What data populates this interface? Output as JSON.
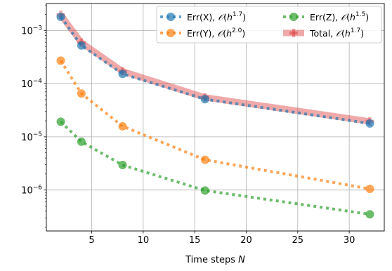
{
  "chart_data": {
    "type": "line",
    "xlabel": "Time steps N",
    "ylabel": "",
    "xscale": "linear",
    "yscale": "log",
    "xlim": [
      0.6,
      33.4
    ],
    "ylim": [
      1.7e-07,
      0.0032
    ],
    "xticks": [
      5,
      10,
      15,
      20,
      25,
      30
    ],
    "xtick_labels": [
      "5",
      "10",
      "15",
      "20",
      "25",
      "30"
    ],
    "yticks": [
      1e-06,
      1e-05,
      0.0001,
      0.001
    ],
    "ytick_labels": [
      {
        "base": "10",
        "exp": "−6"
      },
      {
        "base": "10",
        "exp": "−5"
      },
      {
        "base": "10",
        "exp": "−4"
      },
      {
        "base": "10",
        "exp": "−3"
      }
    ],
    "grid": true,
    "legend": {
      "placement": "top-right",
      "columns": 2
    },
    "x": [
      2,
      4,
      8,
      16,
      32
    ],
    "series": [
      {
        "name": "Err(X)",
        "order": "1.7",
        "color": "#1f77b4",
        "style": "dotted-circle",
        "values": [
          0.0018,
          0.00052,
          0.000152,
          5.1e-05,
          1.78e-05
        ]
      },
      {
        "name": "Err(Y)",
        "order": "2.0",
        "color": "#ff7f0e",
        "style": "dotted-circle",
        "values": [
          0.00027,
          6.5e-05,
          1.58e-05,
          3.7e-06,
          1.05e-06
        ]
      },
      {
        "name": "Err(Z)",
        "order": "1.5",
        "color": "#2ca02c",
        "style": "dotted-circle",
        "values": [
          1.92e-05,
          8.1e-06,
          2.95e-06,
          9.8e-07,
          3.5e-07
        ]
      },
      {
        "name": "Total",
        "order": "1.7",
        "color": "#d62728",
        "style": "thick-plus",
        "values": [
          0.00196,
          0.00059,
          0.00017,
          5.5e-05,
          1.95e-05
        ]
      }
    ]
  }
}
